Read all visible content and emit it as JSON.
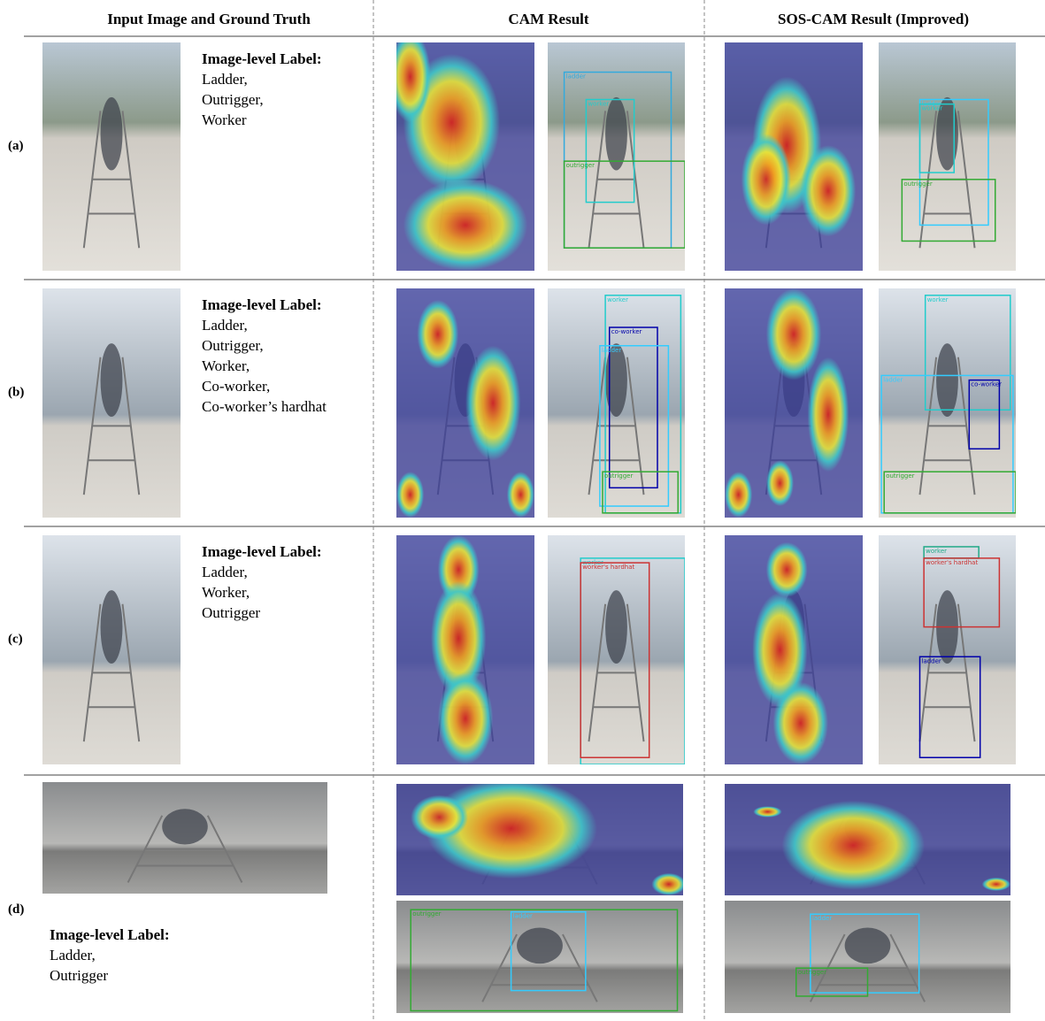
{
  "header": {
    "columns": [
      "Input Image and Ground Truth",
      "CAM Result",
      "SOS-CAM Result (Improved)"
    ]
  },
  "rows": [
    {
      "tag": "(a)",
      "label_heading": "Image-level Label:",
      "labels": [
        "Ladder,",
        "Outrigger,",
        "Worker"
      ],
      "cam_boxes": [
        "ladder",
        "worker",
        "outrigger"
      ],
      "sos_boxes": [
        "ladder",
        "worker",
        "outrigger"
      ]
    },
    {
      "tag": "(b)",
      "label_heading": "Image-level Label:",
      "labels": [
        "Ladder,",
        "Outrigger,",
        "Worker,",
        "Co-worker,",
        "Co-worker’s hardhat"
      ],
      "cam_boxes": [
        "worker",
        "co-worker",
        "ladder",
        "outrigger"
      ],
      "sos_boxes": [
        "worker",
        "ladder",
        "co-worker",
        "outrigger"
      ]
    },
    {
      "tag": "(c)",
      "label_heading": "Image-level Label:",
      "labels": [
        "Ladder,",
        "Worker,",
        "Outrigger"
      ],
      "cam_boxes": [
        "worker",
        "worker's hardhat"
      ],
      "sos_boxes": [
        "worker",
        "worker's hardhat",
        "ladder"
      ]
    },
    {
      "tag": "(d)",
      "label_heading": "Image-level Label:",
      "labels": [
        "Ladder,",
        "Outrigger"
      ],
      "cam_boxes": [
        "outrigger",
        "ladder"
      ],
      "sos_boxes": [
        "ladder",
        "outrigger"
      ]
    }
  ]
}
